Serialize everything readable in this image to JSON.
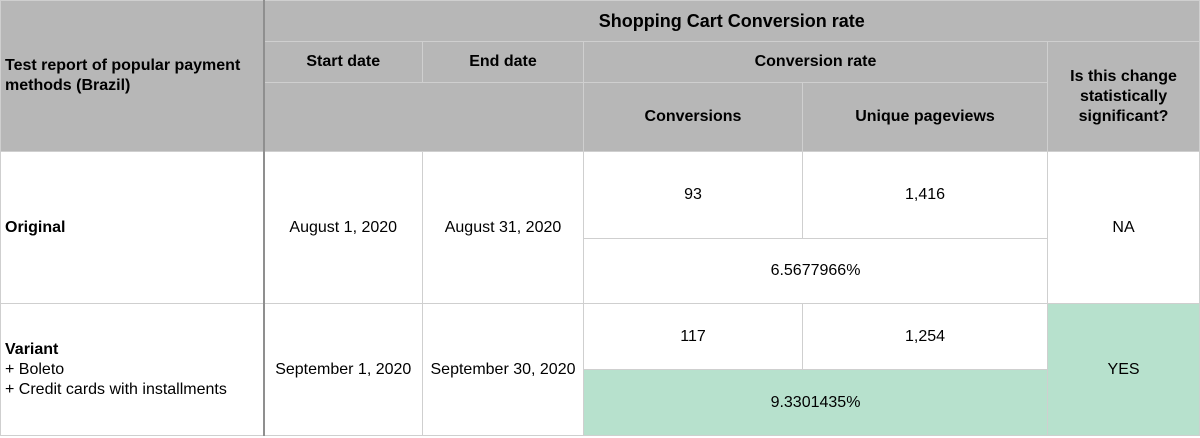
{
  "table": {
    "title": "Shopping Cart Conversion rate",
    "row_header": "Test report of popular payment methods (Brazil)",
    "col_start": "Start date",
    "col_end": "End date",
    "col_rate": "Conversion rate",
    "col_conversions": "Conversions",
    "col_pageviews": "Unique pageviews",
    "col_significant": "Is this change statistically significant?",
    "rows": [
      {
        "name": "Original",
        "details": [],
        "start": "August 1, 2020",
        "end": "August 31, 2020",
        "conversions": "93",
        "pageviews": "1,416",
        "rate": "6.5677966%",
        "significant": "NA"
      },
      {
        "name": "Variant",
        "details": [
          "+ Boleto",
          "+ Credit cards with installments"
        ],
        "start": "September 1, 2020",
        "end": "September 30, 2020",
        "conversions": "117",
        "pageviews": "1,254",
        "rate": "9.3301435%",
        "significant": "YES"
      }
    ],
    "highlight_color": "#b7e1cd",
    "header_color": "#b7b7b7"
  }
}
